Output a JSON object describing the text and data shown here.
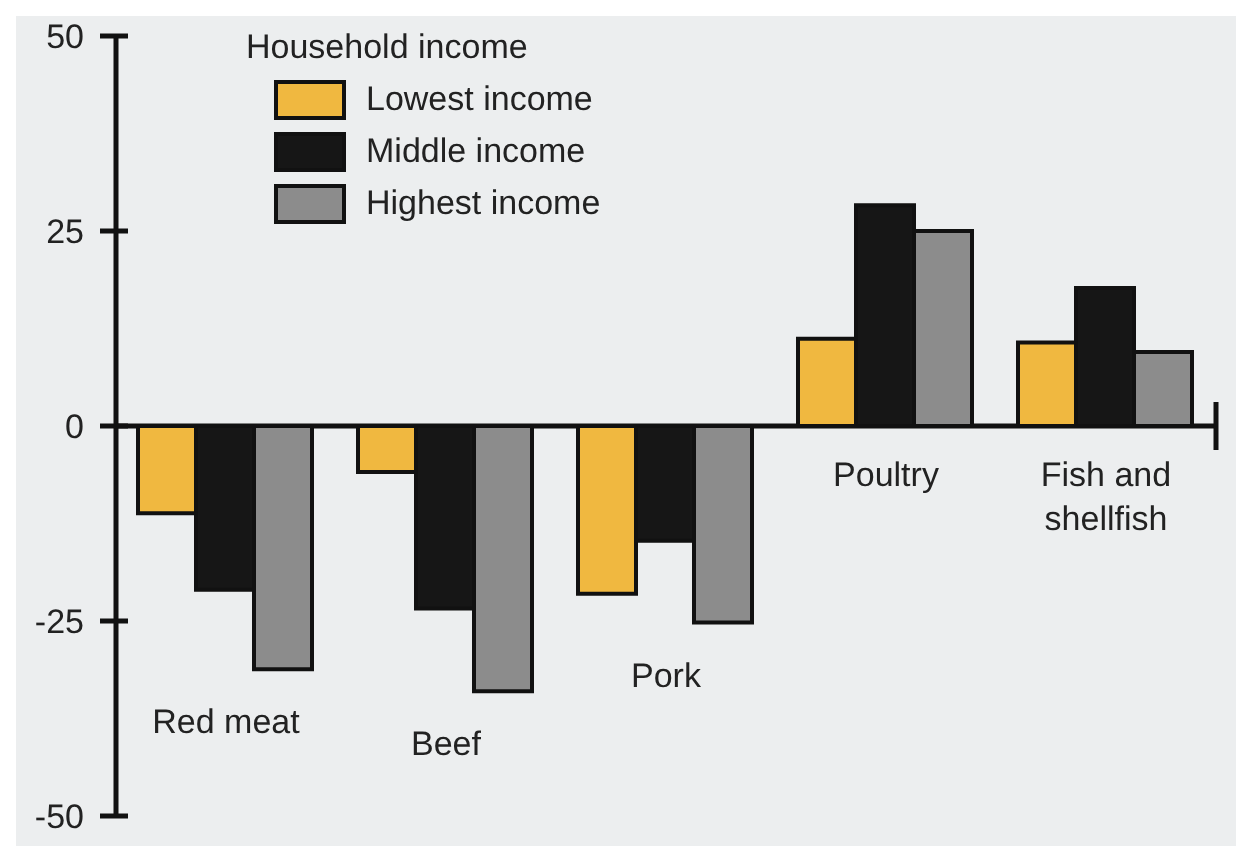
{
  "chart_data": {
    "type": "bar",
    "legend_title": "Household income",
    "categories": [
      "Red meat",
      "Beef",
      "Pork",
      "Poultry",
      "Fish and shellfish"
    ],
    "series": [
      {
        "name": "Lowest income",
        "color": "#f0b840",
        "values": [
          -11.2,
          -5.9,
          -21.5,
          11.2,
          10.7
        ]
      },
      {
        "name": "Middle income",
        "color": "#161616",
        "values": [
          -21,
          -23.4,
          -14.7,
          28.3,
          17.7
        ]
      },
      {
        "name": "Highest income",
        "color": "#8c8c8c",
        "values": [
          -31.2,
          -34,
          -25.2,
          25,
          9.5
        ]
      }
    ],
    "ylim": [
      -50,
      50
    ],
    "yticks": [
      -50,
      -25,
      0,
      25,
      50
    ],
    "grid": false,
    "legend": "top left"
  }
}
